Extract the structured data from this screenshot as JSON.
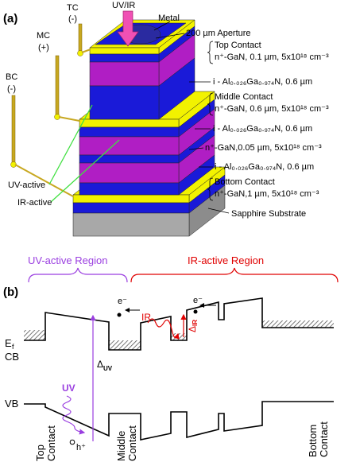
{
  "panel_a": {
    "label": "(a)",
    "light_label": "UV/IR",
    "metal_label": "Metal",
    "aperture_label": "200 µm Aperture",
    "contacts": [
      {
        "name": "TC",
        "polarity": "(-)"
      },
      {
        "name": "MC",
        "polarity": "(+)"
      },
      {
        "name": "BC",
        "polarity": "(-)"
      }
    ],
    "layers": [
      {
        "title": "Top Contact",
        "spec": "n⁺-GaN, 0.1 µm, 5x10¹⁸ cm⁻³"
      },
      {
        "spec": "i - Al₀.₀₂₆Ga₀.₉₇₄N, 0.6 µm"
      },
      {
        "title": "Middle Contact",
        "spec": "n⁺-GaN, 0.6 µm, 5x10¹⁸ cm⁻³"
      },
      {
        "spec": "i - Al₀.₀₂₆Ga₀.₉₇₄N, 0.6 µm"
      },
      {
        "spec": "n⁺-GaN,0.05 µm, 5x10¹⁸ cm⁻³"
      },
      {
        "spec": "i - Al₀.₀₂₆Ga₀.₉₇₄N, 0.6 µm"
      },
      {
        "title": "Bottom Contact",
        "spec": "n⁺-GaN,1 µm, 5x10¹⁸ cm⁻³"
      }
    ],
    "substrate": "Sapphire Substrate",
    "uv_active": "UV-active",
    "ir_active": "IR-active"
  },
  "panel_b": {
    "label": "(b)",
    "uv_region": "UV-active Region",
    "ir_region": "IR-active Region",
    "electron": "e⁻",
    "hole": "h⁺",
    "ir_label": "IR",
    "uv_label": "UV",
    "delta_ir": "Δ",
    "delta_ir_sub": "IR",
    "delta_uv": "Δ",
    "delta_uv_sub": "UV",
    "fermi": "E",
    "fermi_sub": "f",
    "cb": "CB",
    "vb": "VB",
    "contacts": [
      [
        "Top",
        "Contact"
      ],
      [
        "Middle",
        "Contact"
      ],
      [
        "Bottom",
        "Contact"
      ]
    ]
  }
}
